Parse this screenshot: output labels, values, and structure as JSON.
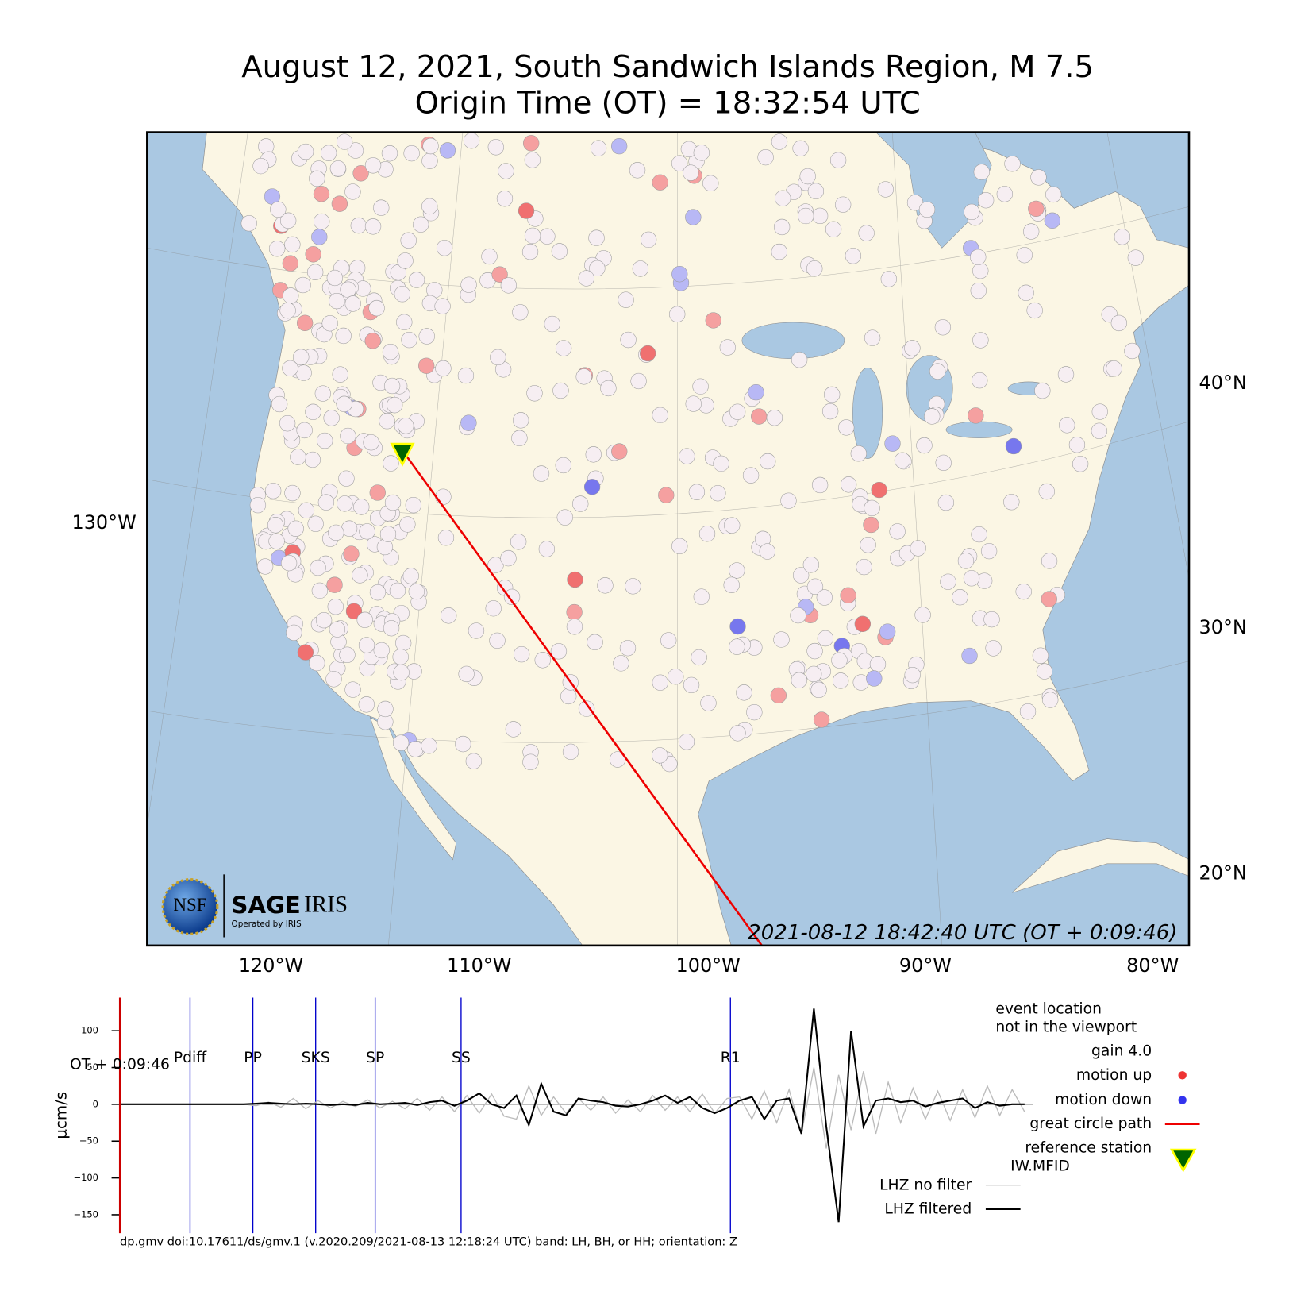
{
  "title": "August 12, 2021, South Sandwich Islands Region, M 7.5",
  "subtitle": "Origin Time (OT) = 18:32:54 UTC",
  "map": {
    "lon_labels": [
      "120°W",
      "110°W",
      "100°W",
      "90°W",
      "80°W"
    ],
    "lat_labels": [
      "40°N",
      "30°N",
      "20°N"
    ],
    "west_label": "130°W",
    "timestamp": "2021-08-12 18:42:40 UTC (OT + 0:09:46)",
    "logo": {
      "nsf": "NSF",
      "sage": "SAGE",
      "iris": "IRIS",
      "operated": "Operated by IRIS"
    }
  },
  "chart_data": {
    "type": "line",
    "y_label": "μcm/s",
    "time_label": "OT + 0:09:46",
    "ylim": [
      -175,
      145
    ],
    "yticks": [
      100,
      50,
      0,
      {
        "value": -50,
        "label": "−50"
      },
      {
        "value": -100,
        "label": "−100"
      },
      {
        "value": -150,
        "label": "−150"
      }
    ],
    "phases": [
      "Pdiff",
      "PP",
      "SKS",
      "SP",
      "SS",
      "R1"
    ],
    "series": [
      {
        "name": "LHZ no filter",
        "color": "#bbbbbb",
        "values": [
          0,
          0,
          0,
          0,
          0,
          0,
          0,
          0,
          0,
          0,
          0,
          -2,
          3,
          -4,
          8,
          -6,
          5,
          -5,
          4,
          -3,
          6,
          -5,
          4,
          -6,
          8,
          -8,
          10,
          -10,
          12,
          -12,
          14,
          -16,
          -20,
          25,
          -15,
          10,
          -12,
          8,
          -8,
          10,
          -12,
          6,
          -10,
          12,
          -8,
          10,
          -10,
          14,
          -12,
          8,
          10,
          -20,
          18,
          -25,
          20,
          -40,
          50,
          -60,
          40,
          -35,
          45,
          -40,
          30,
          -25,
          22,
          -20,
          18,
          -22,
          20,
          -18,
          25,
          -15,
          20,
          -10
        ]
      },
      {
        "name": "LHZ filtered",
        "color": "#000000",
        "values": [
          0,
          0,
          0,
          0,
          0,
          0,
          0,
          0,
          0,
          0,
          0,
          1,
          2,
          1,
          0,
          1,
          0,
          -1,
          0,
          -1,
          2,
          0,
          1,
          2,
          -1,
          3,
          5,
          -2,
          5,
          15,
          0,
          -5,
          12,
          -28,
          28,
          -10,
          -15,
          8,
          5,
          3,
          -2,
          -3,
          0,
          5,
          12,
          2,
          10,
          -5,
          -12,
          -5,
          5,
          10,
          -20,
          5,
          8,
          -40,
          130,
          -30,
          -160,
          100,
          -30,
          5,
          8,
          3,
          5,
          -3,
          2,
          5,
          8,
          -5,
          3,
          -2,
          0,
          0
        ]
      }
    ],
    "legend": {
      "note": [
        "event location",
        "not in the viewport"
      ],
      "gain": "gain  4.0",
      "motion_up": "motion up",
      "motion_down": "motion down",
      "great_circle": "great circle path",
      "reference": [
        "reference station",
        "IW.MFID"
      ]
    },
    "footer": "dp.gmv doi:10.17611/ds/gmv.1 (v.2020.209/2021-08-13 12:18:24 UTC) band: LH, BH, or HH; orientation: Z"
  }
}
